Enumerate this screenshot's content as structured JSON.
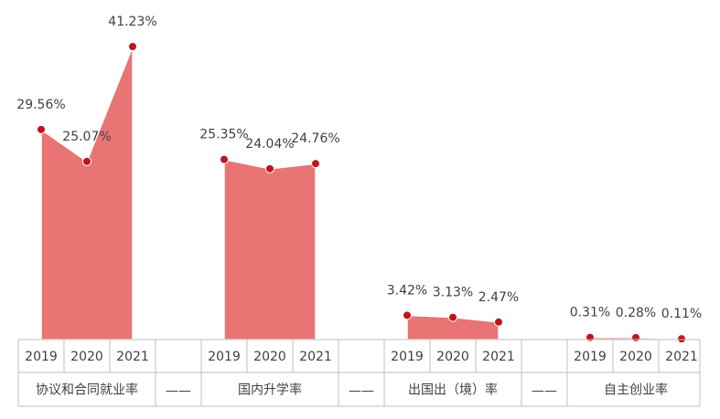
{
  "chart_data": {
    "type": "area",
    "categories": [
      "2019",
      "2020",
      "2021",
      null,
      "2019",
      "2020",
      "2021",
      null,
      "2019",
      "2020",
      "2021",
      null,
      "2019",
      "2020",
      "2021"
    ],
    "group_separator": "——",
    "marker_color": "#c0141e",
    "series": [
      {
        "name": "协议和合同就业率",
        "color": "#e87474",
        "values": [
          29.56,
          25.07,
          41.23,
          null,
          null,
          null,
          null,
          null,
          null,
          null,
          null,
          null,
          null,
          null,
          null
        ],
        "value_labels": [
          "29.56%",
          "25.07%",
          "41.23%",
          null,
          null,
          null,
          null,
          null,
          null,
          null,
          null,
          null,
          null,
          null,
          null
        ]
      },
      {
        "name": "国内升学率",
        "color": "#e87474",
        "values": [
          null,
          null,
          null,
          null,
          25.35,
          24.04,
          24.76,
          null,
          null,
          null,
          null,
          null,
          null,
          null,
          null
        ],
        "value_labels": [
          null,
          null,
          null,
          null,
          "25.35%",
          "24.04%",
          "24.76%",
          null,
          null,
          null,
          null,
          null,
          null,
          null,
          null
        ]
      },
      {
        "name": "出国出（境）率",
        "color": "#e87474",
        "values": [
          null,
          null,
          null,
          null,
          null,
          null,
          null,
          null,
          3.42,
          3.13,
          2.47,
          null,
          null,
          null,
          null
        ],
        "value_labels": [
          null,
          null,
          null,
          null,
          null,
          null,
          null,
          null,
          "3.42%",
          "3.13%",
          "2.47%",
          null,
          null,
          null,
          null
        ]
      },
      {
        "name": "自主创业率",
        "color": "#e87474",
        "values": [
          null,
          null,
          null,
          null,
          null,
          null,
          null,
          null,
          null,
          null,
          null,
          null,
          0.31,
          0.28,
          0.11
        ],
        "value_labels": [
          null,
          null,
          null,
          null,
          null,
          null,
          null,
          null,
          null,
          null,
          null,
          null,
          "0.31%",
          "0.28%",
          "0.11%"
        ]
      }
    ]
  }
}
